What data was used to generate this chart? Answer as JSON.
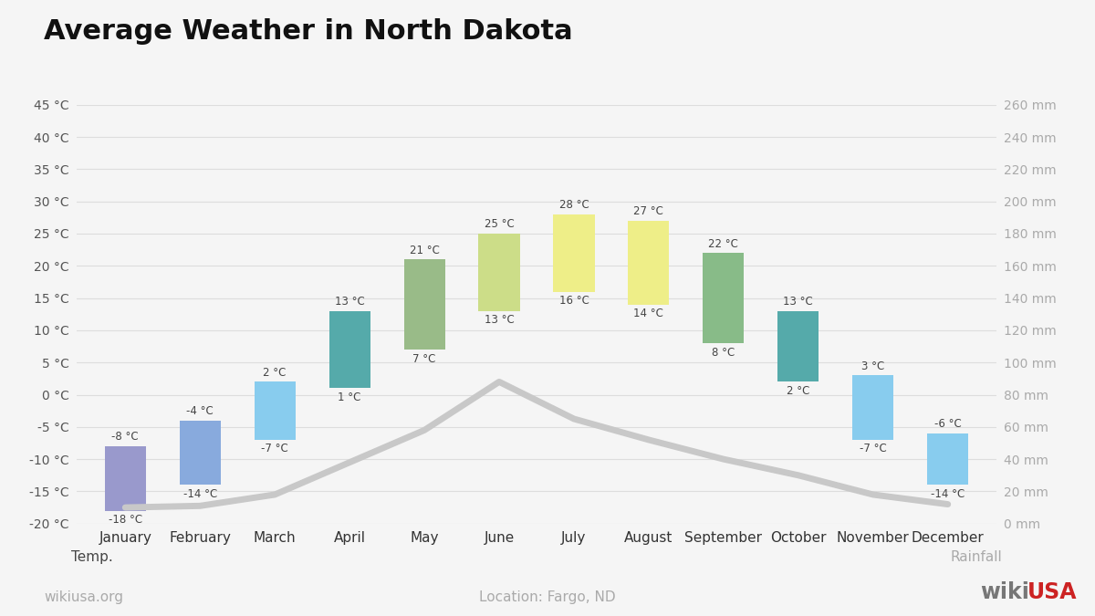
{
  "title": "Average Weather in North Dakota",
  "subtitle": "Location: Fargo, ND",
  "footer_left": "wikiusa.org",
  "footer_right_wiki": "wiki",
  "footer_right_usa": "USA",
  "months": [
    "January",
    "February",
    "March",
    "April",
    "May",
    "June",
    "July",
    "August",
    "September",
    "October",
    "November",
    "December"
  ],
  "temp_max": [
    -8,
    -4,
    2,
    13,
    21,
    25,
    28,
    27,
    22,
    13,
    3,
    -6
  ],
  "temp_min": [
    -18,
    -14,
    -7,
    1,
    7,
    13,
    16,
    14,
    8,
    2,
    -7,
    -14
  ],
  "rainfall_mm": [
    10,
    11,
    18,
    38,
    58,
    88,
    65,
    52,
    40,
    30,
    18,
    12
  ],
  "bar_colors": [
    "#9999cc",
    "#88aadd",
    "#88ccee",
    "#55aaaa",
    "#99bb88",
    "#ccdd88",
    "#eeee88",
    "#eeee88",
    "#88bb88",
    "#55aaaa",
    "#88ccee",
    "#88ccee"
  ],
  "rainfall_line_color": "#c8c8c8",
  "temp_ylim_min": -20,
  "temp_ylim_max": 45,
  "temp_yticks": [
    -20,
    -15,
    -10,
    -5,
    0,
    5,
    10,
    15,
    20,
    25,
    30,
    35,
    40,
    45
  ],
  "rain_ylim_min": 0,
  "rain_ylim_max": 260,
  "rain_yticks": [
    0,
    20,
    40,
    60,
    80,
    100,
    120,
    140,
    160,
    180,
    200,
    220,
    240,
    260
  ],
  "bg_color": "#f5f5f5",
  "xlabel_temp": "Temp.",
  "xlabel_rain": "Rainfall"
}
